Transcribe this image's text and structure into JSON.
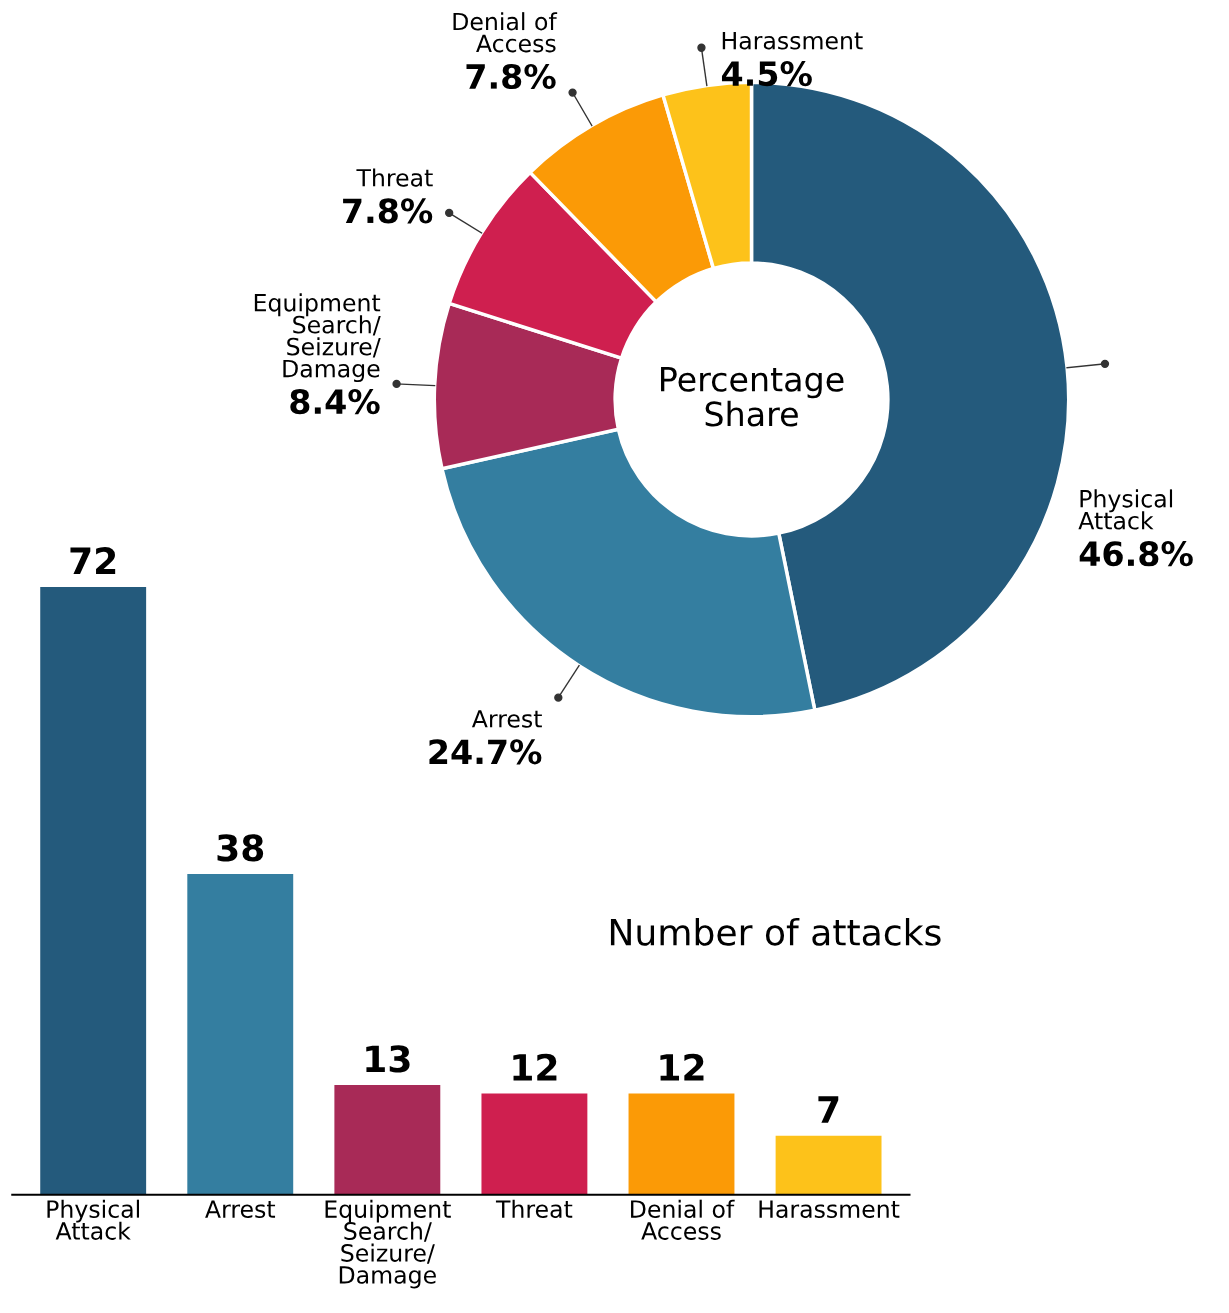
{
  "chart_data": [
    {
      "type": "donut",
      "title": "Percentage\nShare",
      "value_labels": [
        "46.8%",
        "24.7%",
        "8.4%",
        "7.8%",
        "7.8%",
        "4.5%"
      ],
      "categories": [
        "Physical\nAttack",
        "Arrest",
        "Equipment\nSearch/\nSeizure/\nDamage",
        "Threat",
        "Denial of\nAccess",
        "Harassment"
      ],
      "values": [
        46.8,
        24.7,
        8.4,
        7.8,
        7.8,
        4.5
      ],
      "colors": [
        "#245a7c",
        "#347ea0",
        "#a82a57",
        "#cf1f4f",
        "#fb9a06",
        "#fdc21a"
      ]
    },
    {
      "type": "bar",
      "title": "Number of attacks",
      "data_labels": true,
      "categories": [
        "Physical\nAttack",
        "Arrest",
        "Equipment\nSearch/\nSeizure/\nDamage",
        "Threat",
        "Denial of\nAccess",
        "Harassment"
      ],
      "values": [
        72,
        38,
        13,
        12,
        12,
        7
      ],
      "colors": [
        "#245a7c",
        "#347ea0",
        "#a82a57",
        "#cf1f4f",
        "#fb9a06",
        "#fdc21a"
      ]
    }
  ]
}
